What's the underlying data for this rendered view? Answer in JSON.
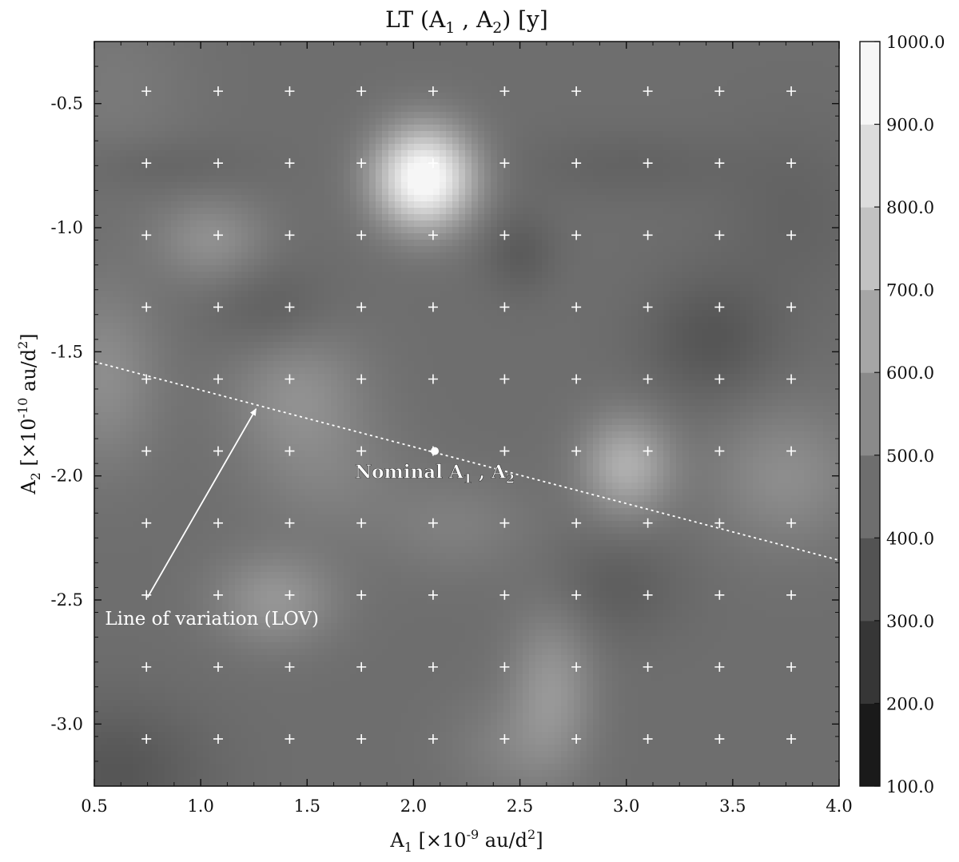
{
  "chart_data": {
    "type": "heatmap",
    "title": {
      "main": "LT (A",
      "sub1": "1",
      "mid": " , A",
      "sub2": "2",
      "end": ") [y]"
    },
    "xlabel": {
      "pre": "A",
      "sub": "1",
      "mid": " [×10",
      "sup": "-9",
      "post": " au/d",
      "sup2": "2",
      "end": "]"
    },
    "ylabel": {
      "pre": "A",
      "sub": "2",
      "mid": " [×10",
      "sup": "-10",
      "post": " au/d",
      "sup2": "2",
      "end": "]"
    },
    "xlim": [
      0.5,
      4.0
    ],
    "ylim": [
      -3.25,
      -0.25
    ],
    "xticks": [
      0.5,
      1.0,
      1.5,
      2.0,
      2.5,
      3.0,
      3.5,
      4.0
    ],
    "xtick_labels": [
      "0.5",
      "1.0",
      "1.5",
      "2.0",
      "2.5",
      "3.0",
      "3.5",
      "4.0"
    ],
    "yticks": [
      -0.5,
      -1.0,
      -1.5,
      -2.0,
      -2.5,
      -3.0
    ],
    "ytick_labels": [
      "-0.5",
      "-1.0",
      "-1.5",
      "-2.0",
      "-2.5",
      "-3.0"
    ],
    "colorbar": {
      "levels": [
        100,
        200,
        300,
        400,
        500,
        600,
        700,
        800,
        900,
        1000
      ],
      "labels": [
        "100.0",
        "200.0",
        "300.0",
        "400.0",
        "500.0",
        "600.0",
        "700.0",
        "800.0",
        "900.0",
        "1000.0"
      ],
      "colors": [
        "#1a1a1a",
        "#363636",
        "#535353",
        "#6e6e6e",
        "#8a8a8a",
        "#a6a6a6",
        "#c2c2c2",
        "#dcdcdc",
        "#f6f6f6"
      ]
    },
    "grid_points_x": [
      0.745,
      1.082,
      1.418,
      1.755,
      2.092,
      2.428,
      2.765,
      3.101,
      3.438,
      3.775
    ],
    "grid_points_y": [
      -0.45,
      -0.74,
      -1.03,
      -1.32,
      -1.61,
      -1.9,
      -2.19,
      -2.48,
      -2.77,
      -3.06
    ],
    "nominal": {
      "x": 2.1,
      "y": -1.9,
      "label": {
        "pre": "Nominal A",
        "sub1": "1",
        "mid": " , A",
        "sub2": "2"
      }
    },
    "lov_line": {
      "x": [
        0.5,
        4.0
      ],
      "y": [
        -1.54,
        -2.34
      ]
    },
    "lov_annotation": {
      "text": "Line of variation (LOV)",
      "text_x": 0.55,
      "text_y": -2.6,
      "arrow_from": [
        0.75,
        -2.49
      ],
      "arrow_to": [
        1.26,
        -1.73
      ]
    },
    "field": {
      "background": 400,
      "blobs": [
        {
          "x": 2.05,
          "y": -0.8,
          "sx": 0.16,
          "sy": 0.14,
          "v": 560
        },
        {
          "x": 3.0,
          "y": -1.96,
          "sx": 0.15,
          "sy": 0.14,
          "v": 230
        },
        {
          "x": 1.05,
          "y": -1.05,
          "sx": 0.18,
          "sy": 0.12,
          "v": 120
        },
        {
          "x": 1.45,
          "y": -1.65,
          "sx": 0.22,
          "sy": 0.2,
          "v": 120
        },
        {
          "x": 1.35,
          "y": -2.5,
          "sx": 0.2,
          "sy": 0.13,
          "v": 140
        },
        {
          "x": 2.65,
          "y": -2.85,
          "sx": 0.14,
          "sy": 0.22,
          "v": 140
        },
        {
          "x": 0.55,
          "y": -1.6,
          "sx": 0.18,
          "sy": 0.25,
          "v": 110
        },
        {
          "x": 3.75,
          "y": -2.0,
          "sx": 0.25,
          "sy": 0.2,
          "v": 110
        },
        {
          "x": 2.2,
          "y": -2.2,
          "sx": 0.25,
          "sy": 0.14,
          "v": 60
        },
        {
          "x": 1.6,
          "y": -2.0,
          "sx": 0.25,
          "sy": 0.18,
          "v": 60
        },
        {
          "x": 2.45,
          "y": -3.1,
          "sx": 0.2,
          "sy": 0.15,
          "v": 60
        },
        {
          "x": 0.6,
          "y": -0.45,
          "sx": 0.25,
          "sy": 0.25,
          "v": 40
        },
        {
          "x": 3.4,
          "y": -1.45,
          "sx": 0.22,
          "sy": 0.18,
          "v": -90
        },
        {
          "x": 1.35,
          "y": -1.35,
          "sx": 0.2,
          "sy": 0.14,
          "v": -70
        },
        {
          "x": 2.5,
          "y": -1.1,
          "sx": 0.12,
          "sy": 0.12,
          "v": -70
        },
        {
          "x": 2.95,
          "y": -2.45,
          "sx": 0.22,
          "sy": 0.15,
          "v": -60
        },
        {
          "x": 0.6,
          "y": -3.2,
          "sx": 0.3,
          "sy": 0.2,
          "v": -90
        },
        {
          "x": 3.8,
          "y": -0.95,
          "sx": 0.25,
          "sy": 0.25,
          "v": -40
        },
        {
          "x": 3.0,
          "y": -0.75,
          "sx": 0.35,
          "sy": 0.1,
          "v": -40
        },
        {
          "x": 0.8,
          "y": -0.75,
          "sx": 0.3,
          "sy": 0.08,
          "v": -40
        }
      ]
    }
  }
}
